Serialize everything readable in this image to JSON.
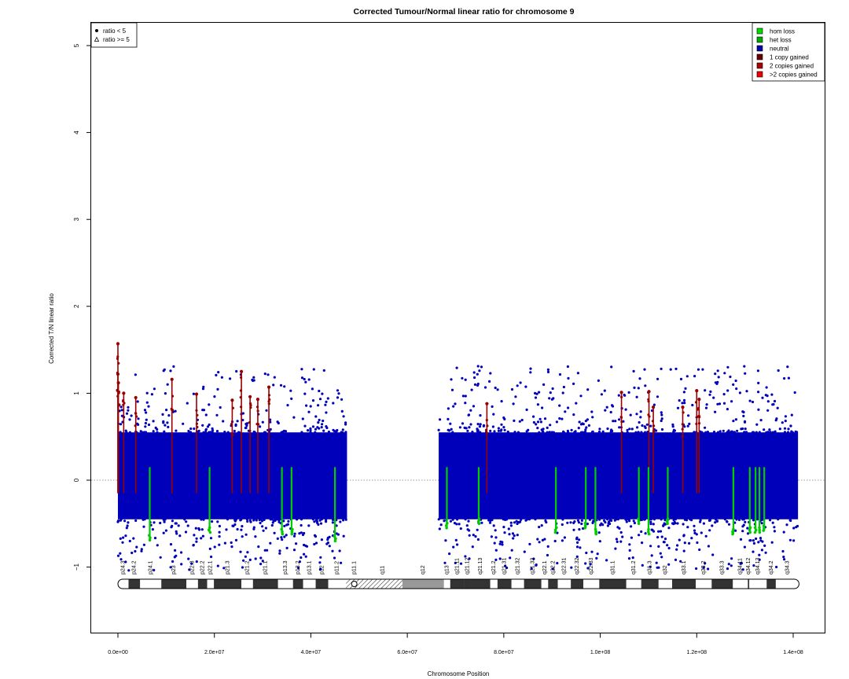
{
  "chart_data": {
    "type": "scatter",
    "title": "Corrected Tumour/Normal linear ratio for chromosome  9",
    "xlabel": "Chromosome Position",
    "ylabel": "Corrected T/N linear ratio",
    "xlim": [
      0,
      142000000
    ],
    "ylim": [
      -1.8,
      5.3
    ],
    "x_ticks": [
      {
        "value": 0,
        "label": "0.0e+00"
      },
      {
        "value": 20000000,
        "label": "2.0e+07"
      },
      {
        "value": 40000000,
        "label": "4.0e+07"
      },
      {
        "value": 60000000,
        "label": "6.0e+07"
      },
      {
        "value": 80000000,
        "label": "8.0e+07"
      },
      {
        "value": 100000000,
        "label": "1.0e+08"
      },
      {
        "value": 120000000,
        "label": "1.2e+08"
      },
      {
        "value": 140000000,
        "label": "1.4e+08"
      }
    ],
    "y_ticks": [
      {
        "value": -1,
        "label": "−1"
      },
      {
        "value": 0,
        "label": "0"
      },
      {
        "value": 1,
        "label": "1"
      },
      {
        "value": 2,
        "label": "2"
      },
      {
        "value": 3,
        "label": "3"
      },
      {
        "value": 4,
        "label": "4"
      },
      {
        "value": 5,
        "label": "5"
      }
    ],
    "reference_line_y": 0,
    "shape_legend": {
      "placement": "top-left",
      "entries": [
        {
          "symbol": "circle",
          "label": "ratio < 5"
        },
        {
          "symbol": "triangle",
          "label": "ratio >= 5"
        }
      ]
    },
    "state_legend": {
      "placement": "top-right",
      "entries": [
        {
          "label": "hom loss",
          "color": "#00dd00"
        },
        {
          "label": "het loss",
          "color": "#00aa00"
        },
        {
          "label": "neutral",
          "color": "#0000aa"
        },
        {
          "label": "1 copy gained",
          "color": "#660000"
        },
        {
          "label": "2 copies gained",
          "color": "#aa0000"
        },
        {
          "label": ">2 copies gained",
          "color": "#ee0000"
        }
      ]
    },
    "colors": {
      "neutral": "#0000bb",
      "gain": "#990000",
      "loss": "#00cc00"
    },
    "series": [
      {
        "state": "neutral",
        "segments": [
          {
            "x0": 0,
            "x1": 47500000,
            "low": -0.45,
            "high": 0.55
          },
          {
            "x0": 66500000,
            "x1": 141000000,
            "low": -0.45,
            "high": 0.55
          }
        ]
      },
      {
        "state": "gain",
        "peaks": [
          {
            "x": 0,
            "y": 1.57
          },
          {
            "x": 0,
            "y": 1.22
          },
          {
            "x": 100000,
            "y": 1.12
          },
          {
            "x": 1200000,
            "y": 1.0
          },
          {
            "x": 3700000,
            "y": 0.95
          },
          {
            "x": 11200000,
            "y": 1.16
          },
          {
            "x": 16300000,
            "y": 0.99
          },
          {
            "x": 23700000,
            "y": 0.92
          },
          {
            "x": 25600000,
            "y": 1.25
          },
          {
            "x": 27400000,
            "y": 0.96
          },
          {
            "x": 29000000,
            "y": 0.93
          },
          {
            "x": 31300000,
            "y": 1.07
          },
          {
            "x": 76500000,
            "y": 0.88
          },
          {
            "x": 104400000,
            "y": 1.01
          },
          {
            "x": 110100000,
            "y": 1.02
          },
          {
            "x": 111000000,
            "y": 0.84
          },
          {
            "x": 117100000,
            "y": 0.84
          },
          {
            "x": 120000000,
            "y": 1.03
          },
          {
            "x": 120500000,
            "y": 0.93
          }
        ]
      },
      {
        "state": "loss",
        "dips": [
          {
            "x": 6600000,
            "y": -0.69
          },
          {
            "x": 19000000,
            "y": -0.6
          },
          {
            "x": 34000000,
            "y": -0.62
          },
          {
            "x": 36000000,
            "y": -0.62
          },
          {
            "x": 45000000,
            "y": -0.7
          },
          {
            "x": 68200000,
            "y": -0.55
          },
          {
            "x": 74800000,
            "y": -0.5
          },
          {
            "x": 90800000,
            "y": -0.6
          },
          {
            "x": 97000000,
            "y": -0.55
          },
          {
            "x": 99000000,
            "y": -0.62
          },
          {
            "x": 108000000,
            "y": -0.5
          },
          {
            "x": 110000000,
            "y": -0.62
          },
          {
            "x": 114000000,
            "y": -0.5
          },
          {
            "x": 127600000,
            "y": -0.62
          },
          {
            "x": 131000000,
            "y": -0.6
          },
          {
            "x": 132200000,
            "y": -0.6
          },
          {
            "x": 133000000,
            "y": -0.6
          },
          {
            "x": 134000000,
            "y": -0.58
          }
        ]
      }
    ],
    "ideogram": {
      "bands": [
        {
          "name": "p24.3",
          "start": 0,
          "end": 2200000,
          "stain": "gneg"
        },
        {
          "name": "p24.2",
          "start": 2200000,
          "end": 4600000,
          "stain": "gpos"
        },
        {
          "name": "p24.1",
          "start": 4600000,
          "end": 9000000,
          "stain": "gneg"
        },
        {
          "name": "p23",
          "start": 9000000,
          "end": 14200000,
          "stain": "gpos"
        },
        {
          "name": "p22.3",
          "start": 14200000,
          "end": 16600000,
          "stain": "gneg"
        },
        {
          "name": "p22.2",
          "start": 16600000,
          "end": 18500000,
          "stain": "gpos"
        },
        {
          "name": "p22.1",
          "start": 18500000,
          "end": 19900000,
          "stain": "gneg"
        },
        {
          "name": "p21.3",
          "start": 19900000,
          "end": 25600000,
          "stain": "gpos"
        },
        {
          "name": "p21.2",
          "start": 25600000,
          "end": 28000000,
          "stain": "gneg"
        },
        {
          "name": "p21.1",
          "start": 28000000,
          "end": 33200000,
          "stain": "gpos"
        },
        {
          "name": "p13.3",
          "start": 33200000,
          "end": 36300000,
          "stain": "gneg"
        },
        {
          "name": "p13.2",
          "start": 36300000,
          "end": 38400000,
          "stain": "gpos"
        },
        {
          "name": "p13.1",
          "start": 38400000,
          "end": 41000000,
          "stain": "gneg"
        },
        {
          "name": "p12",
          "start": 41000000,
          "end": 43600000,
          "stain": "gpos"
        },
        {
          "name": "p11.2",
          "start": 43600000,
          "end": 47300000,
          "stain": "gneg"
        },
        {
          "name": "p11.1",
          "start": 47300000,
          "end": 50700000,
          "stain": "gvar"
        },
        {
          "name": "q11",
          "start": 50700000,
          "end": 59000000,
          "stain": "gvar"
        },
        {
          "name": "q12",
          "start": 59000000,
          "end": 67600000,
          "stain": "gvarsolid"
        },
        {
          "name": "q13",
          "start": 67600000,
          "end": 68900000,
          "stain": "gneg"
        },
        {
          "name": "q21.11",
          "start": 68900000,
          "end": 71800000,
          "stain": "gpos"
        },
        {
          "name": "q21.12",
          "start": 71800000,
          "end": 73100000,
          "stain": "gpos"
        },
        {
          "name": "q21.13",
          "start": 73100000,
          "end": 77200000,
          "stain": "gpos"
        },
        {
          "name": "q21.2",
          "start": 77200000,
          "end": 78700000,
          "stain": "gneg"
        },
        {
          "name": "q21.31",
          "start": 78700000,
          "end": 81600000,
          "stain": "gpos"
        },
        {
          "name": "q21.32",
          "start": 81600000,
          "end": 84200000,
          "stain": "gneg"
        },
        {
          "name": "q21.33",
          "start": 84200000,
          "end": 87800000,
          "stain": "gpos"
        },
        {
          "name": "q22.1",
          "start": 87800000,
          "end": 89200000,
          "stain": "gneg"
        },
        {
          "name": "q22.2",
          "start": 89200000,
          "end": 91200000,
          "stain": "gpos"
        },
        {
          "name": "q22.31",
          "start": 91200000,
          "end": 93900000,
          "stain": "gneg"
        },
        {
          "name": "q22.32",
          "start": 93900000,
          "end": 96500000,
          "stain": "gpos"
        },
        {
          "name": "q22.33",
          "start": 96500000,
          "end": 99800000,
          "stain": "gneg"
        },
        {
          "name": "q31.1",
          "start": 99800000,
          "end": 105400000,
          "stain": "gpos"
        },
        {
          "name": "q31.2",
          "start": 105400000,
          "end": 108500000,
          "stain": "gneg"
        },
        {
          "name": "q31.3",
          "start": 108500000,
          "end": 112100000,
          "stain": "gpos"
        },
        {
          "name": "q32",
          "start": 112100000,
          "end": 114900000,
          "stain": "gneg"
        },
        {
          "name": "q33.1",
          "start": 114900000,
          "end": 119800000,
          "stain": "gpos"
        },
        {
          "name": "q33.2",
          "start": 119800000,
          "end": 123100000,
          "stain": "gneg"
        },
        {
          "name": "q33.3",
          "start": 123100000,
          "end": 127500000,
          "stain": "gpos"
        },
        {
          "name": "q34.11",
          "start": 127500000,
          "end": 130600000,
          "stain": "gneg"
        },
        {
          "name": "q34.12",
          "start": 130600000,
          "end": 130900000,
          "stain": "gpos"
        },
        {
          "name": "q34.13",
          "start": 130900000,
          "end": 134500000,
          "stain": "gneg"
        },
        {
          "name": "q34.2",
          "start": 134500000,
          "end": 136400000,
          "stain": "gpos"
        },
        {
          "name": "q34.3",
          "start": 136400000,
          "end": 141213431,
          "stain": "gneg"
        }
      ],
      "centromere": 49000000
    }
  }
}
